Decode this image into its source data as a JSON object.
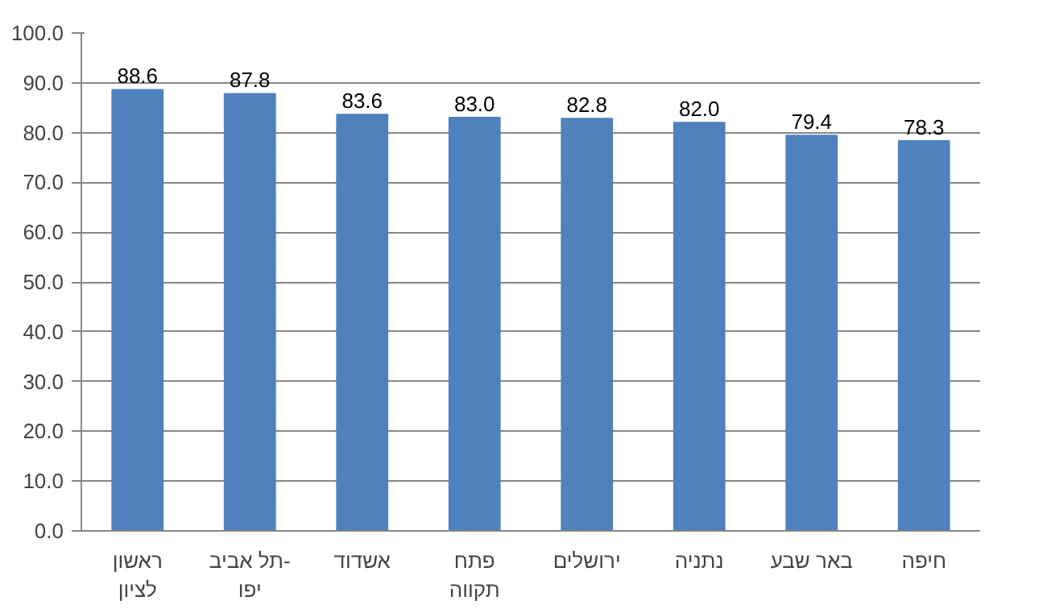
{
  "chart_data": {
    "type": "bar",
    "categories": [
      "ראשון לציון",
      "תל אביב-יפו",
      "אשדוד",
      "פתח תקווה",
      "ירושלים",
      "נתניה",
      "באר שבע",
      "חיפה"
    ],
    "values": [
      88.6,
      87.8,
      83.6,
      83.0,
      82.8,
      82.0,
      79.4,
      78.3
    ],
    "value_labels": [
      "88.6",
      "87.8",
      "83.6",
      "83.0",
      "82.8",
      "82.0",
      "79.4",
      "78.3"
    ],
    "color": "#4f81bd",
    "ylim": [
      0,
      100
    ],
    "yticks": [
      {
        "value": 0,
        "label": "0.0"
      },
      {
        "value": 10,
        "label": "10.0"
      },
      {
        "value": 20,
        "label": "20.0"
      },
      {
        "value": 30,
        "label": "30.0"
      },
      {
        "value": 40,
        "label": "40.0"
      },
      {
        "value": 50,
        "label": "50.0"
      },
      {
        "value": 60,
        "label": "60.0"
      },
      {
        "value": 70,
        "label": "70.0"
      },
      {
        "value": 80,
        "label": "80.0"
      },
      {
        "value": 90,
        "label": "90.0"
      },
      {
        "value": 100,
        "label": "100.0"
      }
    ],
    "grid": "y"
  }
}
